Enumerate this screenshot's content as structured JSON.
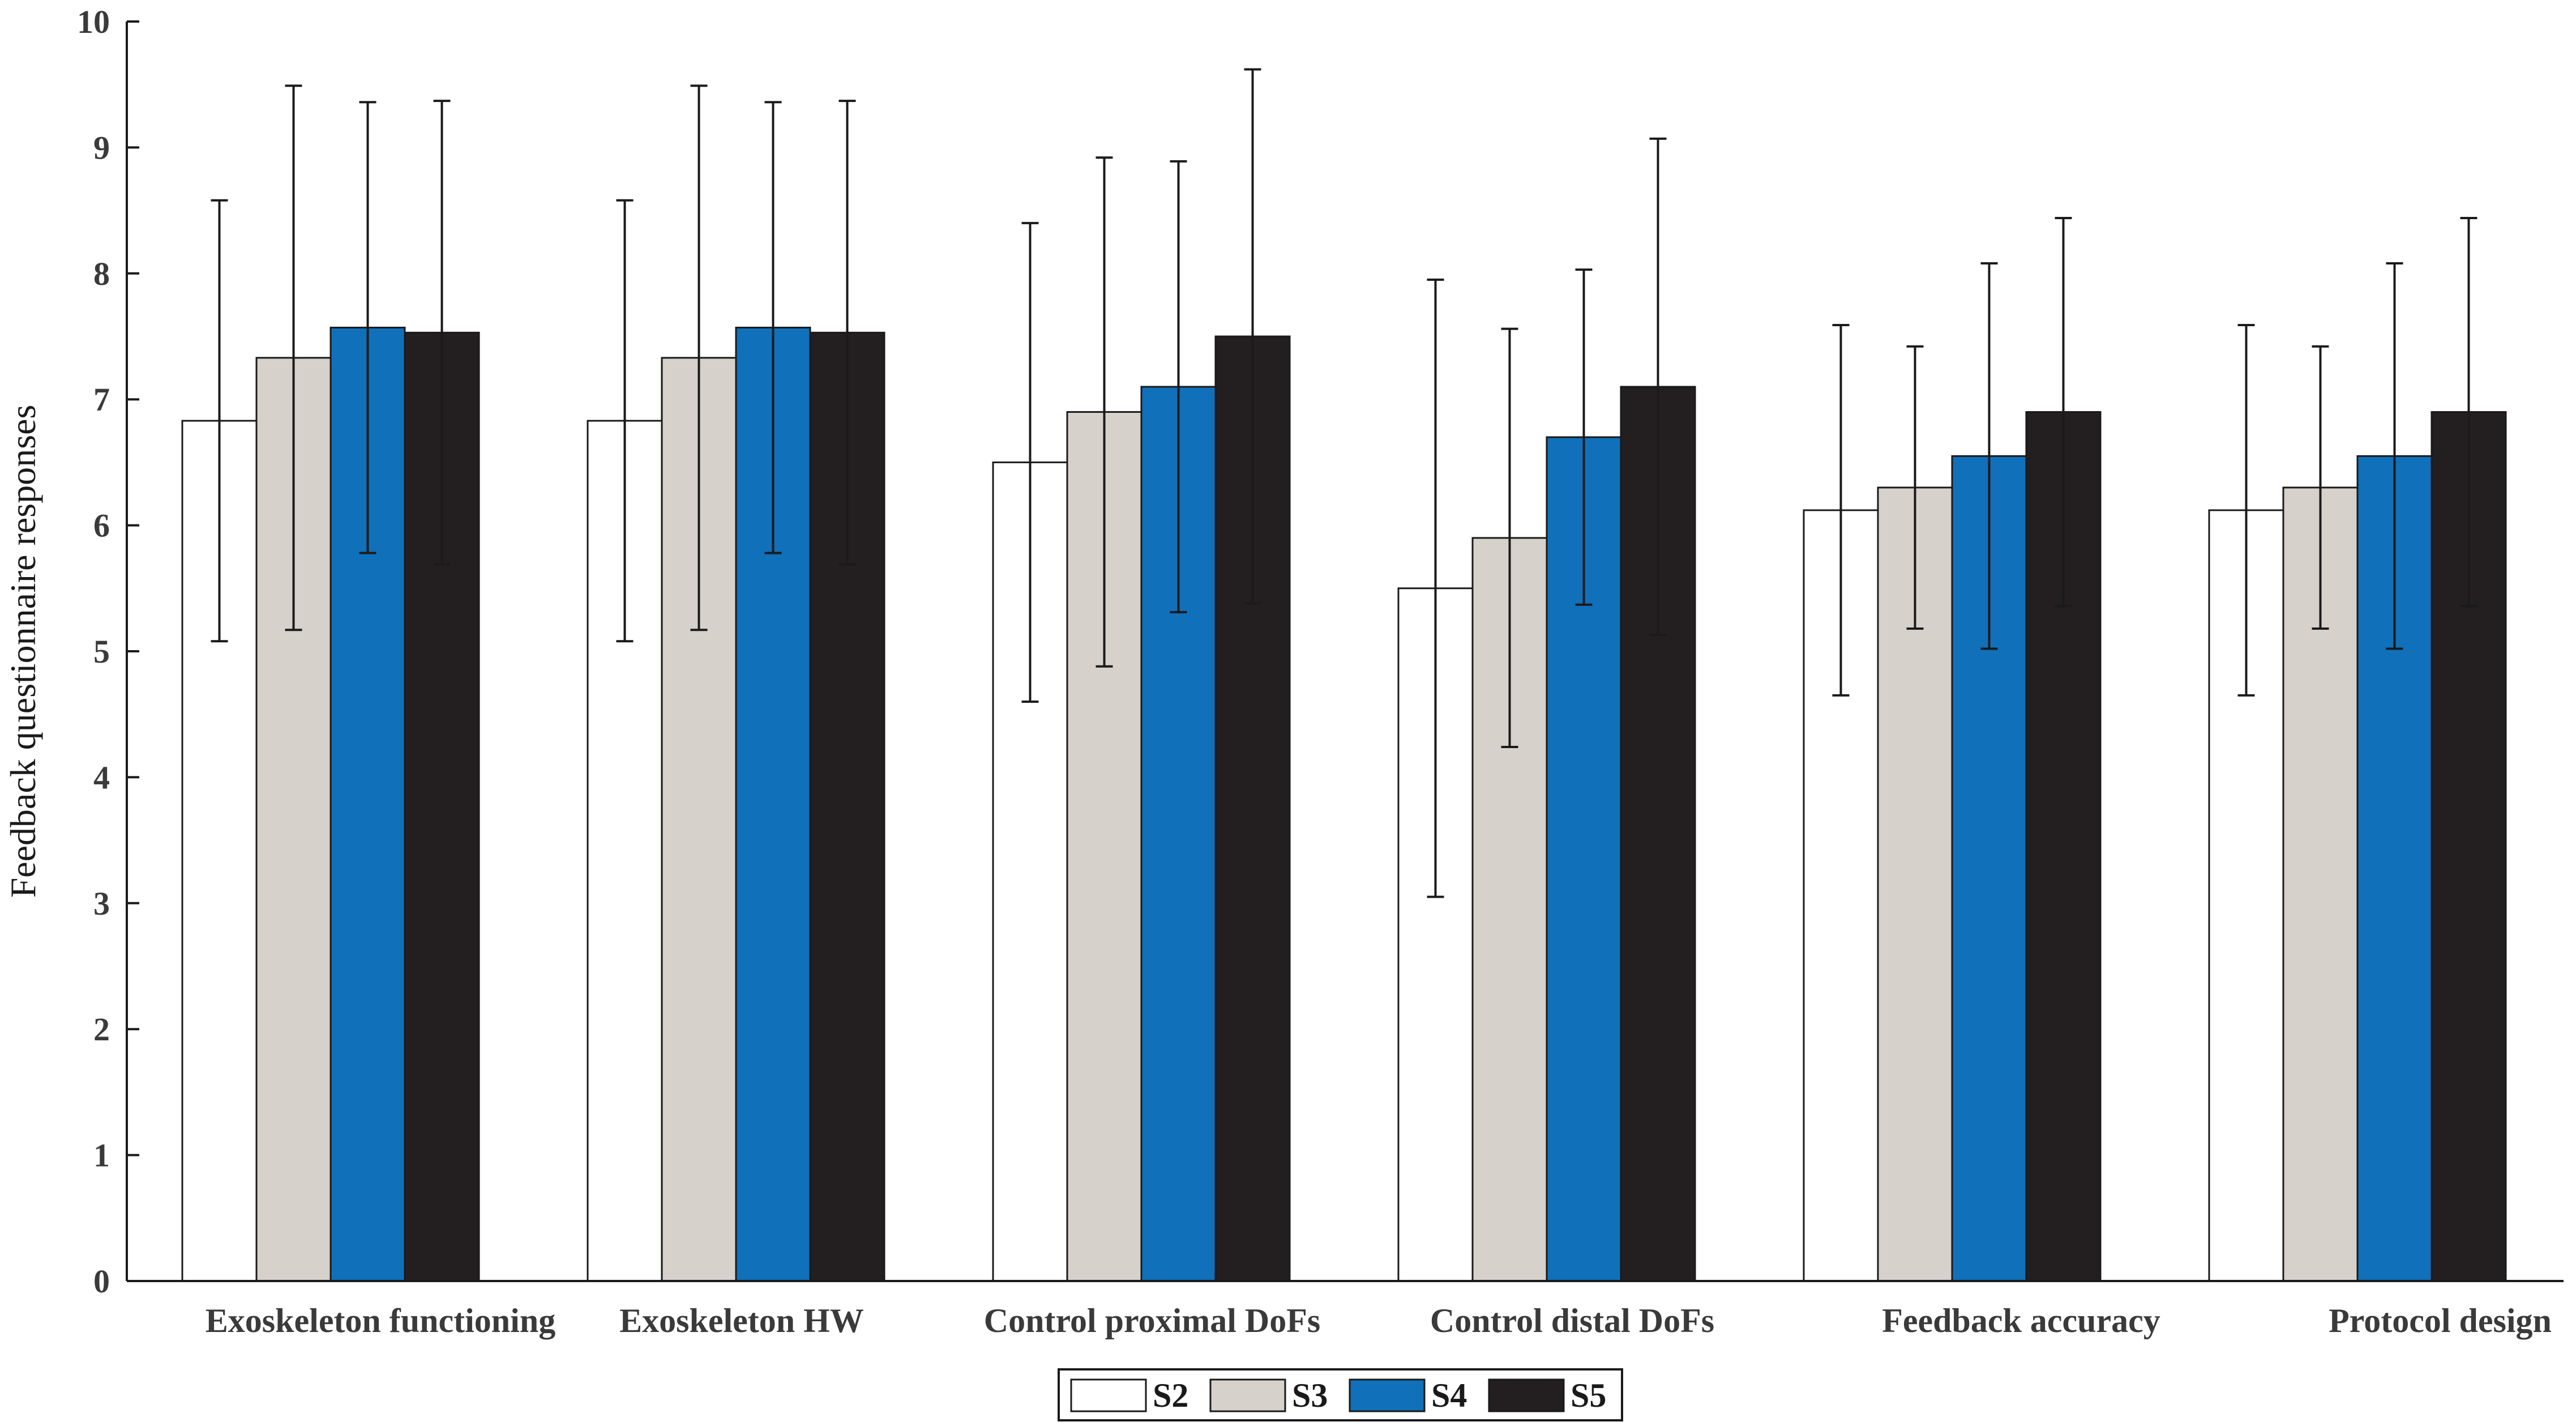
{
  "chart_data": {
    "type": "bar",
    "title": "",
    "xlabel": "",
    "ylabel": "Feedback questionnaire responses",
    "ylim": [
      0,
      10
    ],
    "yticks": [
      0,
      1,
      2,
      3,
      4,
      5,
      6,
      7,
      8,
      9,
      10
    ],
    "categories": [
      "Exoskeleton functioning",
      "Exoskeleton HW",
      "Control proximal DoFs",
      "Control distal DoFs",
      "Feedback accuracy",
      "Protocol design"
    ],
    "series": [
      {
        "name": "S2",
        "color": "#ffffff",
        "values": [
          6.83,
          6.83,
          6.5,
          5.5,
          6.12,
          6.12
        ],
        "errors": [
          1.75,
          1.75,
          1.9,
          2.45,
          1.47,
          1.47
        ]
      },
      {
        "name": "S3",
        "color": "#d6d1cb",
        "values": [
          7.33,
          7.33,
          6.9,
          5.9,
          6.3,
          6.3
        ],
        "errors": [
          2.16,
          2.16,
          2.02,
          1.66,
          1.12,
          1.12
        ]
      },
      {
        "name": "S4",
        "color": "#1070ba",
        "values": [
          7.57,
          7.57,
          7.1,
          6.7,
          6.55,
          6.55
        ],
        "errors": [
          1.79,
          1.79,
          1.79,
          1.33,
          1.53,
          1.53
        ]
      },
      {
        "name": "S5",
        "color": "#231f20",
        "values": [
          7.53,
          7.53,
          7.5,
          7.1,
          6.9,
          6.9
        ],
        "errors": [
          1.84,
          1.84,
          2.12,
          1.97,
          1.54,
          1.54
        ]
      }
    ],
    "legend": {
      "placement": "bottom-center",
      "orientation": "horizontal"
    },
    "grid": false
  }
}
